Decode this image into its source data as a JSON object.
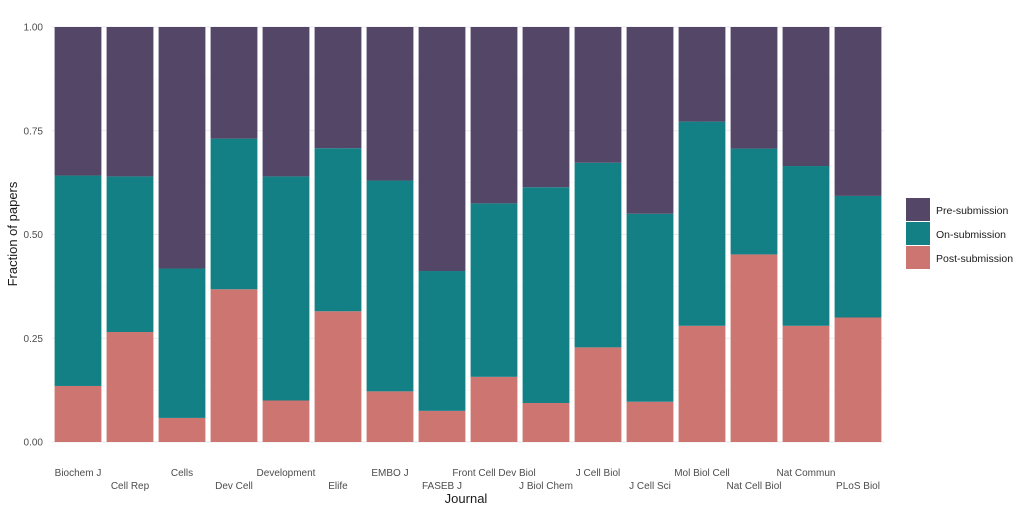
{
  "chart_data": {
    "type": "bar",
    "stacked": true,
    "categories": [
      "Biochem J",
      "Cell Rep",
      "Cells",
      "Dev Cell",
      "Development",
      "Elife",
      "EMBO J",
      "FASEB J",
      "Front Cell Dev Biol",
      "J Biol Chem",
      "J Cell Biol",
      "J Cell Sci",
      "Mol Biol Cell",
      "Nat Cell Biol",
      "Nat Commun",
      "PLoS Biol"
    ],
    "series": [
      {
        "name": "Post-submission",
        "color": "#cd7570",
        "values": [
          0.135,
          0.265,
          0.058,
          0.368,
          0.1,
          0.315,
          0.122,
          0.075,
          0.157,
          0.094,
          0.228,
          0.097,
          0.28,
          0.452,
          0.28,
          0.3
        ]
      },
      {
        "name": "On-submission",
        "color": "#138086",
        "values": [
          0.507,
          0.375,
          0.36,
          0.363,
          0.54,
          0.393,
          0.508,
          0.337,
          0.418,
          0.52,
          0.445,
          0.453,
          0.492,
          0.255,
          0.385,
          0.293
        ]
      },
      {
        "name": "Pre-submission",
        "color": "#534666",
        "values": [
          0.358,
          0.36,
          0.582,
          0.269,
          0.36,
          0.292,
          0.37,
          0.588,
          0.425,
          0.386,
          0.327,
          0.45,
          0.228,
          0.293,
          0.335,
          0.407
        ]
      }
    ],
    "legend_order": [
      "Pre-submission",
      "On-submission",
      "Post-submission"
    ],
    "xlabel": "Journal",
    "ylabel": "Fraction of papers",
    "ylim": [
      0,
      1
    ],
    "yticks": [
      "0.00",
      "0.25",
      "0.50",
      "0.75",
      "1.00"
    ],
    "ytick_values": [
      0,
      0.25,
      0.5,
      0.75,
      1
    ],
    "grid": true,
    "legend_position": "right"
  }
}
